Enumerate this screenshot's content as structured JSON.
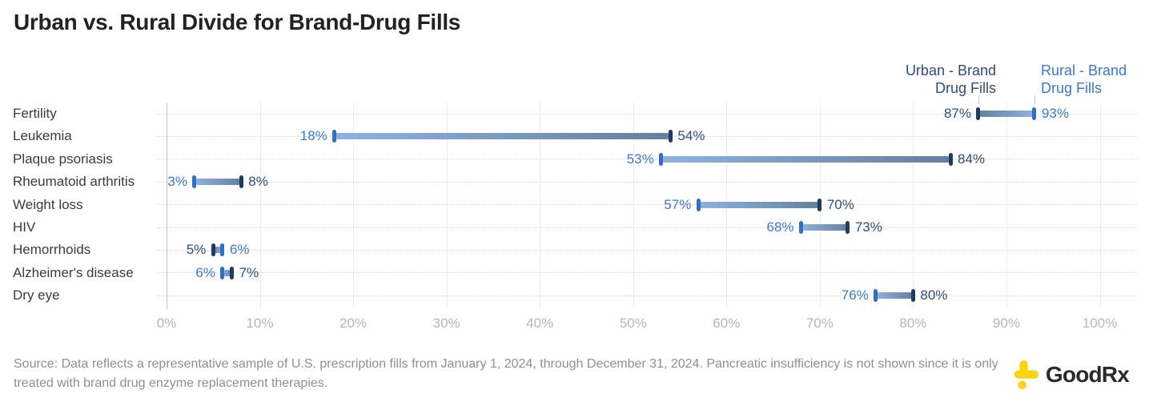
{
  "title": "Urban vs. Rural Divide for Brand-Drug Fills",
  "legend": {
    "urban": {
      "line1": "Urban - Brand",
      "line2": "Drug Fills"
    },
    "rural": {
      "line1": "Rural - Brand",
      "line2": "Drug Fills"
    }
  },
  "colors": {
    "urban_cap": "#1e3c61",
    "urban_text": "#2d4d78",
    "urban_bar_light": "#64809f",
    "rural_cap": "#306fc4",
    "rural_text": "#3b78cc",
    "rural_bar_light": "#8db3e2",
    "grid": "#ebebeb",
    "zero_line": "#c4c4c4",
    "row_dotted": "#d9d9d9",
    "tick_text": "#b5b5b5",
    "logo_yellow": "#f8d411"
  },
  "chart_data": {
    "type": "dumbbell",
    "title": "Urban vs. Rural Divide for Brand-Drug Fills",
    "categories": [
      "Fertility",
      "Leukemia",
      "Plaque psoriasis",
      "Rheumatoid arthritis",
      "Weight loss",
      "HIV",
      "Hemorrhoids",
      "Alzheimer's disease",
      "Dry eye"
    ],
    "series": [
      {
        "name": "Urban - Brand Drug Fills",
        "values": [
          87,
          54,
          84,
          8,
          70,
          73,
          5,
          7,
          80
        ]
      },
      {
        "name": "Rural - Brand Drug Fills",
        "values": [
          93,
          18,
          53,
          3,
          57,
          68,
          6,
          6,
          76
        ]
      }
    ],
    "value_suffix": "%",
    "x_axis": {
      "min": 0,
      "max": 100,
      "ticks": [
        "0%",
        "10%",
        "20%",
        "30%",
        "40%",
        "50%",
        "60%",
        "70%",
        "80%",
        "90%",
        "100%"
      ],
      "grid": true
    },
    "legend_position": "top-right"
  },
  "source": {
    "text": "Source: Data reflects a representative sample of U.S. prescription fills from January 1, 2024, through December 31, 2024. Pancreatic insufficiency is not shown since it is only treated with brand drug enzyme replacement therapies."
  },
  "logo": {
    "text": "GoodRx"
  }
}
